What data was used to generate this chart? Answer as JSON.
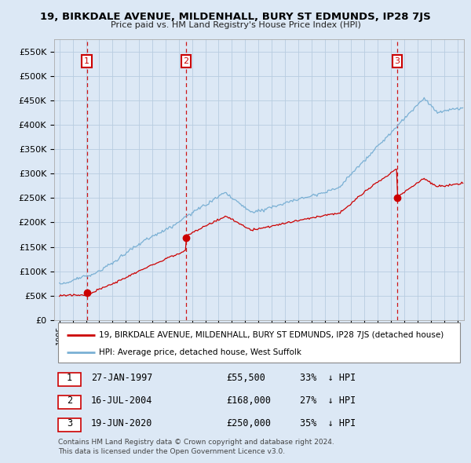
{
  "title": "19, BIRKDALE AVENUE, MILDENHALL, BURY ST EDMUNDS, IP28 7JS",
  "subtitle": "Price paid vs. HM Land Registry's House Price Index (HPI)",
  "ylim": [
    0,
    575000
  ],
  "yticks": [
    0,
    50000,
    100000,
    150000,
    200000,
    250000,
    300000,
    350000,
    400000,
    450000,
    500000,
    550000
  ],
  "ytick_labels": [
    "£0",
    "£50K",
    "£100K",
    "£150K",
    "£200K",
    "£250K",
    "£300K",
    "£350K",
    "£400K",
    "£450K",
    "£500K",
    "£550K"
  ],
  "sale_points": [
    {
      "label": "1",
      "date": "27-JAN-1997",
      "price": 55500,
      "year": 1997.07,
      "pct": "33%",
      "direction": "↓"
    },
    {
      "label": "2",
      "date": "16-JUL-2004",
      "price": 168000,
      "year": 2004.54,
      "pct": "27%",
      "direction": "↓"
    },
    {
      "label": "3",
      "date": "19-JUN-2020",
      "price": 250000,
      "year": 2020.46,
      "pct": "35%",
      "direction": "↓"
    }
  ],
  "legend_property": "19, BIRKDALE AVENUE, MILDENHALL, BURY ST EDMUNDS, IP28 7JS (detached house)",
  "legend_hpi": "HPI: Average price, detached house, West Suffolk",
  "footnote1": "Contains HM Land Registry data © Crown copyright and database right 2024.",
  "footnote2": "This data is licensed under the Open Government Licence v3.0.",
  "property_color": "#cc0000",
  "hpi_color": "#7ab0d4",
  "dashed_line_color": "#cc0000",
  "background_color": "#dce8f5",
  "plot_bg_color": "#dce8f5",
  "table_bg_color": "#ffffff"
}
